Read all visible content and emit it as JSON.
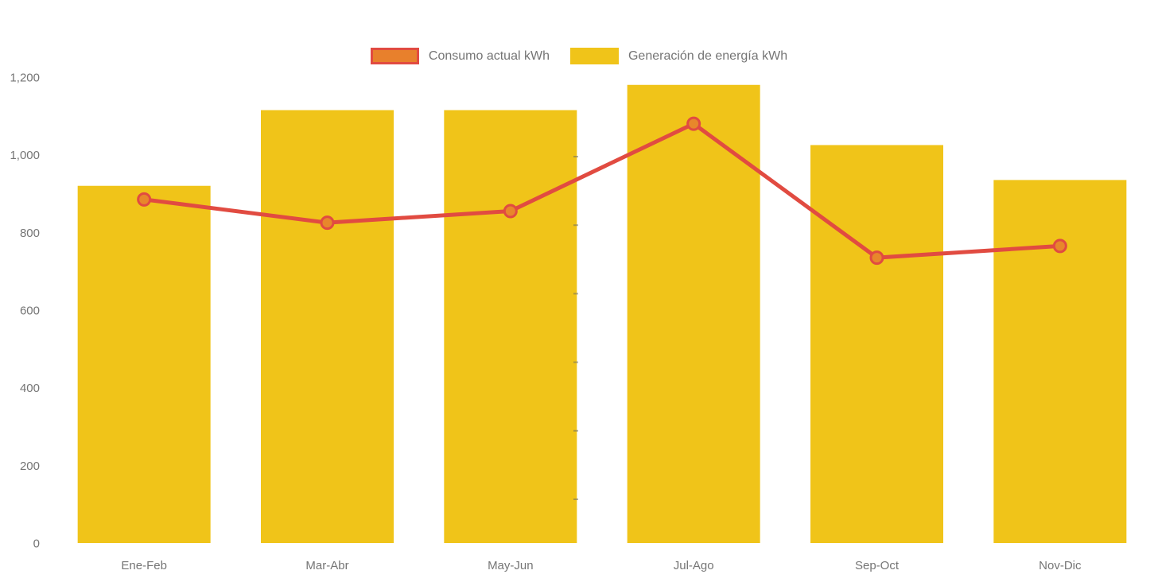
{
  "chart_data": {
    "type": "bar",
    "title": "",
    "xlabel": "",
    "ylabel": "",
    "categories": [
      "Ene-Feb",
      "Mar-Abr",
      "May-Jun",
      "Jul-Ago",
      "Sep-Oct",
      "Nov-Dic"
    ],
    "series": [
      {
        "name": "Consumo actual kWh",
        "type": "line",
        "values": [
          885,
          825,
          855,
          1080,
          735,
          765
        ],
        "color": "#E14B41",
        "marker_fill": "#E8872B"
      },
      {
        "name": "Generación de energía kWh",
        "type": "bar",
        "values": [
          920,
          1115,
          1115,
          1180,
          1025,
          935
        ],
        "color": "#F0C419"
      }
    ],
    "ylim": [
      0,
      1200
    ],
    "ytick_step": 200,
    "grid": false,
    "legend_position": "top-center"
  },
  "axes": {
    "y_ticks": [
      "0",
      "200",
      "400",
      "600",
      "800",
      "1,000",
      "1,200"
    ],
    "label_color": "#757575"
  },
  "colors": {
    "background": "#ffffff",
    "bar": "#F0C419",
    "line": "#E14B41",
    "marker_fill": "#E8872B",
    "legend_swatch_consumo_fill": "#E8802C",
    "legend_swatch_consumo_border": "#E14B41",
    "text": "#757575"
  }
}
